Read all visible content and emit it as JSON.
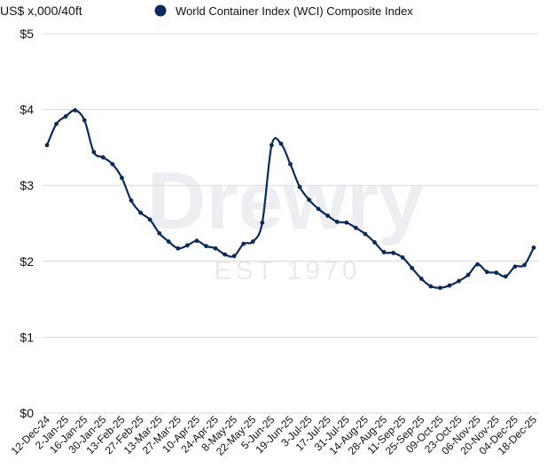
{
  "chart_data": {
    "type": "line",
    "unit_label": "US$ x,000/40ft",
    "legend": {
      "entries": [
        "World Container Index (WCI) Composite Index"
      ],
      "placement": "top"
    },
    "watermark": {
      "brand": "Drewry",
      "tagline": "EST 1970"
    },
    "ylim": [
      0,
      5
    ],
    "yticks": [
      {
        "value": 0,
        "label": "$0"
      },
      {
        "value": 1,
        "label": "$1"
      },
      {
        "value": 2,
        "label": "$2"
      },
      {
        "value": 3,
        "label": "$3"
      },
      {
        "value": 4,
        "label": "$4"
      },
      {
        "value": 5,
        "label": "$5"
      }
    ],
    "grid": true,
    "x_tick_labels": [
      "12-Dec-24",
      "2-Jan-25",
      "16-Jan-25",
      "30-Jan-25",
      "13-Feb-25",
      "27-Feb-25",
      "13-Mar-25",
      "27-Mar-25",
      "10-Apr-25",
      "24-Apr-25",
      "8-May-25",
      "22-May-25",
      "5-Jun-25",
      "19-Jun-25",
      "3-Jul-25",
      "17-Jul-25",
      "31-Jul-25",
      "14-Aug-25",
      "28-Aug-25",
      "11-Sep-25",
      "25-Sep-25",
      "09-Oct-25",
      "23-Oct-25",
      "06-Nov-25",
      "20-Nov-25",
      "04-Dec-25",
      "18-Dec-25"
    ],
    "series": [
      {
        "name": "World Container Index (WCI) Composite Index",
        "color": "#0b2a5b",
        "values": [
          3.53,
          3.81,
          3.91,
          3.99,
          3.86,
          3.44,
          3.37,
          3.28,
          3.1,
          2.8,
          2.64,
          2.55,
          2.37,
          2.26,
          2.17,
          2.21,
          2.27,
          2.2,
          2.17,
          2.09,
          2.07,
          2.23,
          2.26,
          2.51,
          3.53,
          3.55,
          3.28,
          2.98,
          2.81,
          2.69,
          2.6,
          2.52,
          2.51,
          2.44,
          2.36,
          2.25,
          2.12,
          2.11,
          2.05,
          1.91,
          1.77,
          1.67,
          1.65,
          1.68,
          1.74,
          1.82,
          1.96,
          1.86,
          1.85,
          1.8,
          1.93,
          1.95,
          2.18
        ]
      }
    ]
  }
}
